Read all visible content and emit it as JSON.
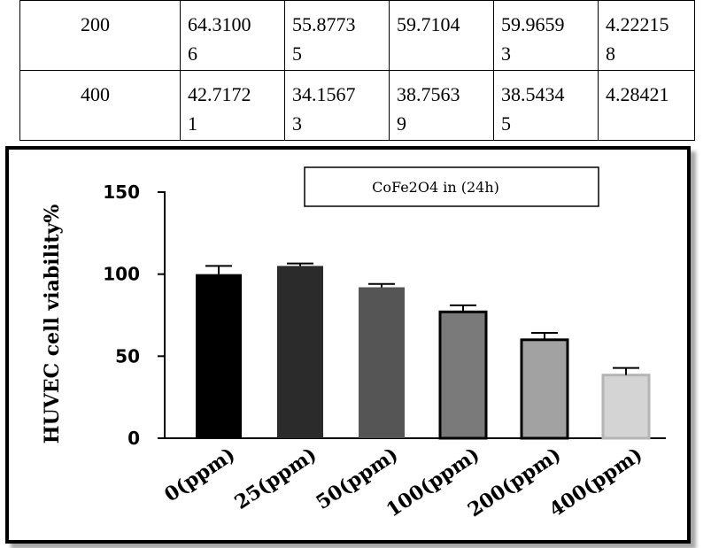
{
  "table": {
    "rows": [
      {
        "label": "200",
        "values": [
          "64.3100\n6",
          "55.8773\n5",
          "59.7104",
          "59.9659\n3",
          "4.22215\n8"
        ]
      },
      {
        "label": "400",
        "values": [
          "42.7172\n1",
          "34.1567\n3",
          "38.7563\n9",
          "38.5434\n5",
          "4.28421"
        ]
      }
    ]
  },
  "chart_data": {
    "type": "bar",
    "title": "CoFe2O4 in (24h)",
    "ylabel": "HUVEC cell viability%",
    "xlabel": "",
    "ylim": [
      0,
      150
    ],
    "yticks": [
      0,
      50,
      100,
      150
    ],
    "categories": [
      "0(ppm)",
      "25(ppm)",
      "50(ppm)",
      "100(ppm)",
      "200(ppm)",
      "400(ppm)"
    ],
    "values": [
      100,
      105,
      92,
      77,
      60,
      38.5
    ],
    "errors": [
      5,
      1.5,
      2,
      4,
      4.2,
      4.3
    ],
    "colors": [
      "#000000",
      "#2b2b2b",
      "#555555",
      "#7a7a7a",
      "#a2a2a2",
      "#d4d4d4"
    ],
    "legend_position": "top-right",
    "grid": false
  }
}
